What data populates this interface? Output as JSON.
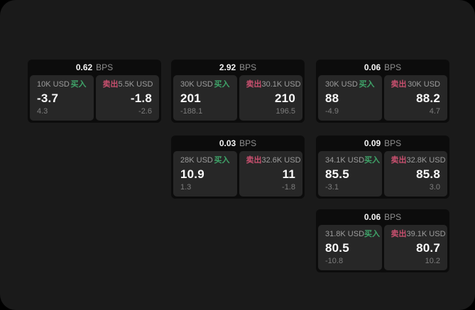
{
  "colors": {
    "outer_bg": "#000000",
    "page_bg": "#1a1a1a",
    "card_bg": "#0c0c0c",
    "tile_bg": "#272727",
    "buy_green": "#3fa469",
    "sell_red": "#c9506f"
  },
  "labels": {
    "buy": "买入",
    "sell": "卖出",
    "bps_unit": "BPS"
  },
  "cards": [
    {
      "bps": "0.62",
      "row": 1,
      "col": 1,
      "buy": {
        "amount": "10K USD",
        "value": "-3.7",
        "sub": "4.3"
      },
      "sell": {
        "amount": "5.5K USD",
        "value": "-1.8",
        "sub": "-2.6"
      }
    },
    {
      "bps": "2.92",
      "row": 1,
      "col": 2,
      "buy": {
        "amount": "30K USD",
        "value": "201",
        "sub": "-188.1"
      },
      "sell": {
        "amount": "30.1K USD",
        "value": "210",
        "sub": "196.5"
      }
    },
    {
      "bps": "0.06",
      "row": 1,
      "col": 3,
      "buy": {
        "amount": "30K USD",
        "value": "88",
        "sub": "-4.9"
      },
      "sell": {
        "amount": "30K USD",
        "value": "88.2",
        "sub": "4.7"
      }
    },
    {
      "bps": "0.03",
      "row": 2,
      "col": 2,
      "buy": {
        "amount": "28K USD",
        "value": "10.9",
        "sub": "1.3"
      },
      "sell": {
        "amount": "32.6K USD",
        "value": "11",
        "sub": "-1.8"
      }
    },
    {
      "bps": "0.09",
      "row": 2,
      "col": 3,
      "buy": {
        "amount": "34.1K USD",
        "value": "85.5",
        "sub": "-3.1"
      },
      "sell": {
        "amount": "32.8K USD",
        "value": "85.8",
        "sub": "3.0"
      }
    },
    {
      "bps": "0.06",
      "row": 3,
      "col": 3,
      "buy": {
        "amount": "31.8K USD",
        "value": "80.5",
        "sub": "-10.8"
      },
      "sell": {
        "amount": "39.1K USD",
        "value": "80.7",
        "sub": "10.2"
      }
    }
  ]
}
